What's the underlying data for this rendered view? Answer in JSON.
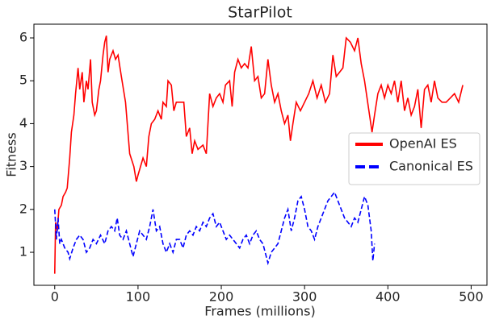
{
  "chart_data": {
    "type": "line",
    "title": "StarPilot",
    "x_label": "Frames (millions)",
    "y_label": "Fitness",
    "xlim": [
      -25,
      519
    ],
    "ylim": [
      0.23,
      6.32
    ],
    "xticks": [
      0,
      100,
      200,
      300,
      400,
      500
    ],
    "yticks": [
      1,
      2,
      3,
      4,
      5,
      6
    ],
    "legend_position": "center right",
    "series": [
      {
        "name": "OpenAI ES",
        "color": "#ff0000",
        "dash": "solid",
        "x": [
          0,
          1,
          3,
          5,
          8,
          10,
          13,
          15,
          18,
          20,
          23,
          25,
          28,
          30,
          33,
          35,
          38,
          40,
          43,
          45,
          48,
          50,
          53,
          55,
          58,
          60,
          62,
          64,
          66,
          70,
          73,
          76,
          80,
          85,
          90,
          95,
          98,
          100,
          103,
          106,
          110,
          113,
          116,
          120,
          124,
          128,
          130,
          134,
          136,
          140,
          143,
          146,
          150,
          155,
          158,
          162,
          165,
          168,
          172,
          178,
          182,
          186,
          190,
          194,
          198,
          202,
          205,
          210,
          213,
          216,
          220,
          224,
          228,
          232,
          236,
          240,
          244,
          248,
          252,
          256,
          260,
          264,
          268,
          272,
          276,
          280,
          283,
          286,
          290,
          295,
          300,
          305,
          310,
          315,
          320,
          325,
          330,
          334,
          338,
          342,
          346,
          350,
          355,
          360,
          364,
          368,
          372,
          378,
          381,
          384,
          388,
          392,
          396,
          400,
          404,
          408,
          412,
          416,
          420,
          424,
          428,
          432,
          436,
          440,
          444,
          448,
          452,
          456,
          460,
          465,
          470,
          475,
          480,
          485,
          490
        ],
        "values": [
          0.5,
          1.7,
          1.5,
          2.0,
          2.1,
          2.3,
          2.4,
          2.5,
          3.2,
          3.8,
          4.2,
          4.7,
          5.3,
          4.8,
          5.2,
          4.5,
          5.0,
          4.8,
          5.5,
          4.5,
          4.2,
          4.3,
          4.8,
          5.0,
          5.6,
          5.9,
          6.05,
          5.2,
          5.5,
          5.7,
          5.5,
          5.6,
          5.1,
          4.5,
          3.3,
          3.0,
          2.65,
          2.8,
          3.0,
          3.2,
          3.0,
          3.7,
          4.0,
          4.1,
          4.3,
          4.1,
          4.5,
          4.4,
          5.0,
          4.9,
          4.3,
          4.5,
          4.5,
          4.5,
          3.7,
          3.9,
          3.3,
          3.6,
          3.4,
          3.5,
          3.3,
          4.7,
          4.4,
          4.6,
          4.7,
          4.5,
          4.9,
          5.0,
          4.4,
          5.2,
          5.5,
          5.3,
          5.4,
          5.3,
          5.8,
          5.0,
          5.1,
          4.6,
          4.7,
          5.5,
          4.9,
          4.5,
          4.7,
          4.3,
          4.0,
          4.2,
          3.6,
          4.0,
          4.5,
          4.3,
          4.5,
          4.7,
          5.0,
          4.6,
          4.9,
          4.5,
          4.7,
          5.6,
          5.1,
          5.2,
          5.3,
          6.0,
          5.9,
          5.7,
          6.0,
          5.4,
          5.0,
          4.2,
          3.8,
          4.2,
          4.7,
          4.9,
          4.6,
          4.9,
          4.7,
          5.0,
          4.5,
          5.0,
          4.3,
          4.6,
          4.2,
          4.4,
          4.8,
          3.9,
          4.8,
          4.9,
          4.5,
          5.0,
          4.6,
          4.5,
          4.5,
          4.6,
          4.7,
          4.5,
          4.9
        ]
      },
      {
        "name": "Canonical ES",
        "color": "#0000ff",
        "dash": "dashed",
        "x": [
          0,
          2,
          4,
          6,
          8,
          12,
          16,
          18,
          22,
          26,
          30,
          34,
          38,
          42,
          46,
          50,
          55,
          60,
          64,
          68,
          72,
          75,
          78,
          82,
          86,
          90,
          94,
          98,
          102,
          106,
          110,
          114,
          118,
          122,
          126,
          130,
          134,
          138,
          142,
          146,
          150,
          154,
          158,
          162,
          166,
          170,
          174,
          178,
          182,
          186,
          190,
          194,
          198,
          202,
          206,
          210,
          214,
          218,
          222,
          226,
          230,
          234,
          238,
          242,
          246,
          250,
          254,
          256,
          260,
          264,
          268,
          272,
          276,
          280,
          284,
          288,
          292,
          296,
          300,
          304,
          308,
          312,
          316,
          320,
          324,
          328,
          332,
          336,
          340,
          344,
          348,
          352,
          356,
          360,
          364,
          368,
          372,
          376,
          380,
          382,
          384
        ],
        "values": [
          2.0,
          1.3,
          1.8,
          1.2,
          1.3,
          1.1,
          1.0,
          0.85,
          1.1,
          1.3,
          1.4,
          1.3,
          1.0,
          1.1,
          1.3,
          1.2,
          1.4,
          1.2,
          1.5,
          1.6,
          1.5,
          1.8,
          1.4,
          1.3,
          1.5,
          1.2,
          0.9,
          1.2,
          1.5,
          1.4,
          1.3,
          1.6,
          2.0,
          1.5,
          1.6,
          1.2,
          1.0,
          1.2,
          1.0,
          1.3,
          1.3,
          1.1,
          1.4,
          1.5,
          1.4,
          1.6,
          1.5,
          1.7,
          1.6,
          1.8,
          1.9,
          1.6,
          1.7,
          1.5,
          1.3,
          1.4,
          1.3,
          1.2,
          1.1,
          1.3,
          1.4,
          1.2,
          1.4,
          1.5,
          1.3,
          1.2,
          0.9,
          0.75,
          1.0,
          1.1,
          1.2,
          1.5,
          1.8,
          2.0,
          1.5,
          1.8,
          2.2,
          2.3,
          2.0,
          1.6,
          1.5,
          1.3,
          1.6,
          1.8,
          2.0,
          2.2,
          2.3,
          2.4,
          2.2,
          2.0,
          1.8,
          1.7,
          1.6,
          1.8,
          1.7,
          2.0,
          2.3,
          2.1,
          1.5,
          0.8,
          1.2
        ]
      }
    ]
  }
}
